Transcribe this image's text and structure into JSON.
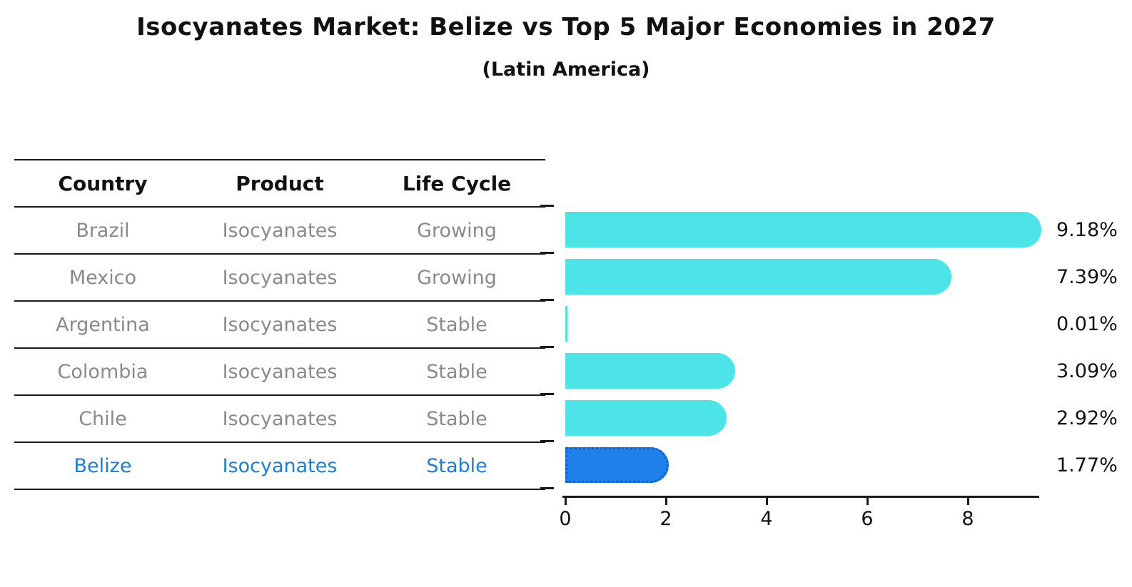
{
  "title": "Isocyanates Market: Belize vs Top 5 Major Economies in 2027",
  "subtitle": "(Latin America)",
  "table": {
    "headers": [
      "Country",
      "Product",
      "Life Cycle"
    ],
    "rows": [
      {
        "country": "Brazil",
        "product": "Isocyanates",
        "life_cycle": "Growing",
        "highlight": false
      },
      {
        "country": "Mexico",
        "product": "Isocyanates",
        "life_cycle": "Growing",
        "highlight": false
      },
      {
        "country": "Argentina",
        "product": "Isocyanates",
        "life_cycle": "Stable",
        "highlight": false
      },
      {
        "country": "Colombia",
        "product": "Isocyanates",
        "life_cycle": "Stable",
        "highlight": false
      },
      {
        "country": "Chile",
        "product": "Isocyanates",
        "life_cycle": "Stable",
        "highlight": false
      },
      {
        "country": "Belize",
        "product": "Isocyanates",
        "life_cycle": "Stable",
        "highlight": true
      }
    ]
  },
  "chart_data": {
    "type": "bar",
    "orientation": "horizontal",
    "title": "Isocyanates Market: Belize vs Top 5 Major Economies in 2027 (Latin America)",
    "categories": [
      "Brazil",
      "Mexico",
      "Argentina",
      "Colombia",
      "Chile",
      "Belize"
    ],
    "values": [
      9.18,
      7.39,
      0.01,
      3.09,
      2.92,
      1.77
    ],
    "value_labels": [
      "9.18%",
      "7.39%",
      "0.01%",
      "3.09%",
      "2.92%",
      "1.77%"
    ],
    "x_ticks": [
      0,
      2,
      4,
      6,
      8
    ],
    "xlim": [
      0,
      9.5
    ],
    "xlabel": "",
    "ylabel": "",
    "grid": false,
    "legend": false,
    "highlight_index": 5,
    "bar_color": "#4DE4E8",
    "highlight_bar_color": "#1F80EA",
    "highlight_border_color": "#0E5FC9",
    "highlight_text_color": "#1E7DD6",
    "text_color": "#111111",
    "muted_text_color": "#8A8A8A",
    "axis_color": "#1A1A1A"
  }
}
